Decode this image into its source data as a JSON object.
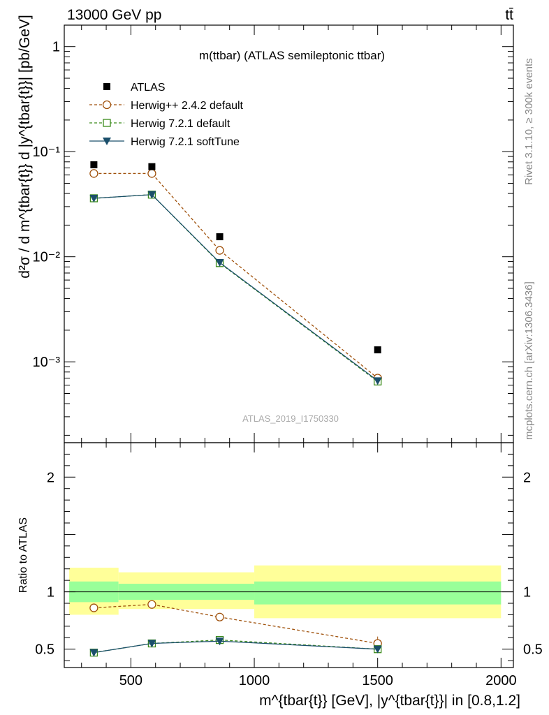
{
  "header": {
    "energy_label": "13000 GeV pp",
    "process_label": "tt̄"
  },
  "side_text": {
    "rivet": "Rivet 3.1.10, ≥ 300k events",
    "source": "mcplots.cern.ch [arXiv:1306.3436]"
  },
  "chart_data": [
    {
      "type": "scatter",
      "panel": "main",
      "title": "m(ttbar) (ATLAS semileptonic ttbar)",
      "analysis_id": "ATLAS_2019_I1750330",
      "ylabel": "d²σ / d m^{tbar{t}} d |y^{tbar{t}}| [pb/GeV]",
      "yscale": "log",
      "ylim": [
        0.00017,
        1.6
      ],
      "xlim": [
        230,
        2050
      ],
      "x_ticks": [
        500,
        1000,
        1500,
        2000
      ],
      "y_ticks": [
        {
          "value": 1,
          "label": "1"
        },
        {
          "value": 0.1,
          "label": "10⁻¹"
        },
        {
          "value": 0.01,
          "label": "10⁻²"
        },
        {
          "value": 0.001,
          "label": "10⁻³"
        }
      ],
      "legend_position": "top-left",
      "series": [
        {
          "name": "ATLAS",
          "style": "filled-square",
          "color": "#000000",
          "x": [
            350,
            585,
            860,
            1500
          ],
          "y": [
            0.075,
            0.072,
            0.0155,
            0.0013
          ]
        },
        {
          "name": "Herwig++ 2.4.2 default",
          "style": "open-circle-dashed",
          "color": "#a0520d",
          "x": [
            350,
            585,
            860,
            1500
          ],
          "y": [
            0.062,
            0.062,
            0.0115,
            0.0007
          ]
        },
        {
          "name": "Herwig 7.2.1 default",
          "style": "open-square-dashed",
          "color": "#3a8a1a",
          "x": [
            350,
            585,
            860,
            1500
          ],
          "y": [
            0.036,
            0.039,
            0.0087,
            0.00065
          ]
        },
        {
          "name": "Herwig 7.2.1 softTune",
          "style": "triangle-solid",
          "color": "#1b4f6b",
          "x": [
            350,
            585,
            860,
            1500
          ],
          "y": [
            0.036,
            0.039,
            0.0088,
            0.00066
          ]
        }
      ]
    },
    {
      "type": "scatter",
      "panel": "ratio",
      "ylabel": "Ratio to ATLAS",
      "xlabel": "m^{tbar{t}} [GeV], |y^{tbar{t}}| in [0.8,1.2]",
      "ylim": [
        0.34,
        2.3
      ],
      "xlim": [
        230,
        2050
      ],
      "x_ticks": [
        500,
        1000,
        1500,
        2000
      ],
      "y_ticks": [
        {
          "value": 0.5,
          "label": "0.5"
        },
        {
          "value": 1,
          "label": "1"
        },
        {
          "value": 2,
          "label": "2"
        }
      ],
      "bins": [
        [
          250,
          450
        ],
        [
          450,
          1000
        ],
        [
          1000,
          2000
        ]
      ],
      "band_inner": [
        [
          0.91,
          1.09
        ],
        [
          0.93,
          1.07
        ],
        [
          0.89,
          1.09
        ]
      ],
      "band_outer": [
        [
          0.8,
          1.21
        ],
        [
          0.85,
          1.17
        ],
        [
          0.77,
          1.23
        ]
      ],
      "series": [
        {
          "name": "Herwig++ 2.4.2 default",
          "x": [
            350,
            585,
            860,
            1500
          ],
          "y": [
            0.86,
            0.89,
            0.78,
            0.55
          ]
        },
        {
          "name": "Herwig 7.2.1 default",
          "x": [
            350,
            585,
            860,
            1500
          ],
          "y": [
            0.47,
            0.55,
            0.58,
            0.5
          ]
        },
        {
          "name": "Herwig 7.2.1 softTune",
          "x": [
            350,
            585,
            860,
            1500
          ],
          "y": [
            0.47,
            0.55,
            0.57,
            0.5
          ]
        }
      ]
    }
  ]
}
